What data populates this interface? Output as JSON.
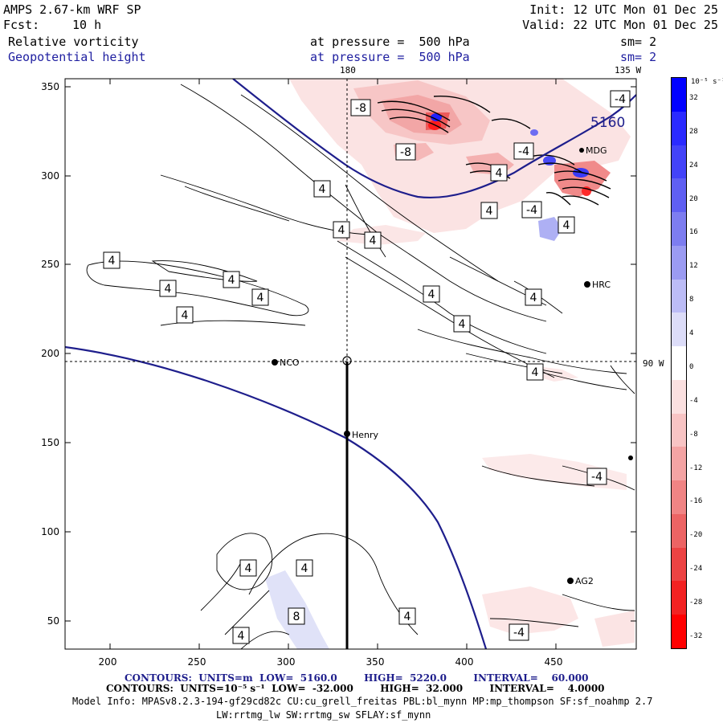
{
  "header": {
    "model": "AMPS 2.67-km WRF SP",
    "init": "Init: 12 UTC Mon 01 Dec 25",
    "fcst_label": "Fcst:",
    "fcst_value": "10 h",
    "valid": "Valid: 22 UTC Mon 01 Dec 25",
    "field1": "Relative vorticity",
    "field1_level": "at pressure =  500 hPa",
    "field1_sm": "sm= 2",
    "field2": "Geopotential height",
    "field2_level": "at pressure =  500 hPa",
    "field2_sm": "sm= 2"
  },
  "map": {
    "lon_labels": [
      "180",
      "135 W",
      "90 W"
    ],
    "x_ticks": [
      "200",
      "250",
      "300",
      "350",
      "400",
      "450"
    ],
    "y_ticks": [
      "350",
      "300",
      "250",
      "200",
      "150",
      "100",
      "50"
    ],
    "x_range": [
      176,
      497
    ],
    "y_range": [
      34,
      356
    ],
    "stations": [
      {
        "name": "NCO",
        "x": 293,
        "y": 195
      },
      {
        "name": "Henry",
        "x": 334,
        "y": 155
      },
      {
        "name": "HRC",
        "x": 468,
        "y": 239
      },
      {
        "name": "AG2",
        "x": 460,
        "y": 72
      },
      {
        "name": "MDG",
        "x": 464,
        "y": 314
      }
    ],
    "height_label": "5160",
    "vorticity_labels": [
      "-8",
      "-8",
      "-4",
      "-4",
      "4",
      "-4",
      "4",
      "4",
      "4",
      "4",
      "4",
      "4",
      "4",
      "4",
      "4",
      "4",
      "4",
      "4",
      "4",
      "4",
      "-4",
      "4",
      "4",
      "8",
      "4",
      "4",
      "-4"
    ]
  },
  "colorbar": {
    "unit": "10⁻⁵ s⁻¹",
    "labels": [
      "32",
      "28",
      "24",
      "20",
      "16",
      "12",
      "8",
      "4",
      "0",
      "-4",
      "-8",
      "-12",
      "-16",
      "-20",
      "-24",
      "-28",
      "-32"
    ],
    "colors": [
      "#0000ff",
      "#2a2aff",
      "#4343f8",
      "#5f5ff2",
      "#7d7df0",
      "#9b9bf2",
      "#bcbcf6",
      "#dcdcf8",
      "#ffffff",
      "#fbe0e0",
      "#f8c4c4",
      "#f4a4a4",
      "#f08484",
      "#ec6464",
      "#ec4343",
      "#f22222",
      "#ff0000"
    ]
  },
  "footer": {
    "line1": "CONTOURS:  UNITS=m  LOW=  5160.0        HIGH=  5220.0        INTERVAL=    60.000",
    "line2": "CONTOURS:  UNITS=10⁻⁵ s⁻¹  LOW=  -32.000        HIGH=  32.000        INTERVAL=    4.0000",
    "line3": "Model Info: MPASv8.2.3-194-gf29cd82c CU:cu_grell_freitas PBL:bl_mynn MP:mp_thompson SF:sf_noahmp 2.7",
    "line4": "LW:rrtmg_lw SW:rrtmg_sw SFLAY:sf_mynn"
  }
}
